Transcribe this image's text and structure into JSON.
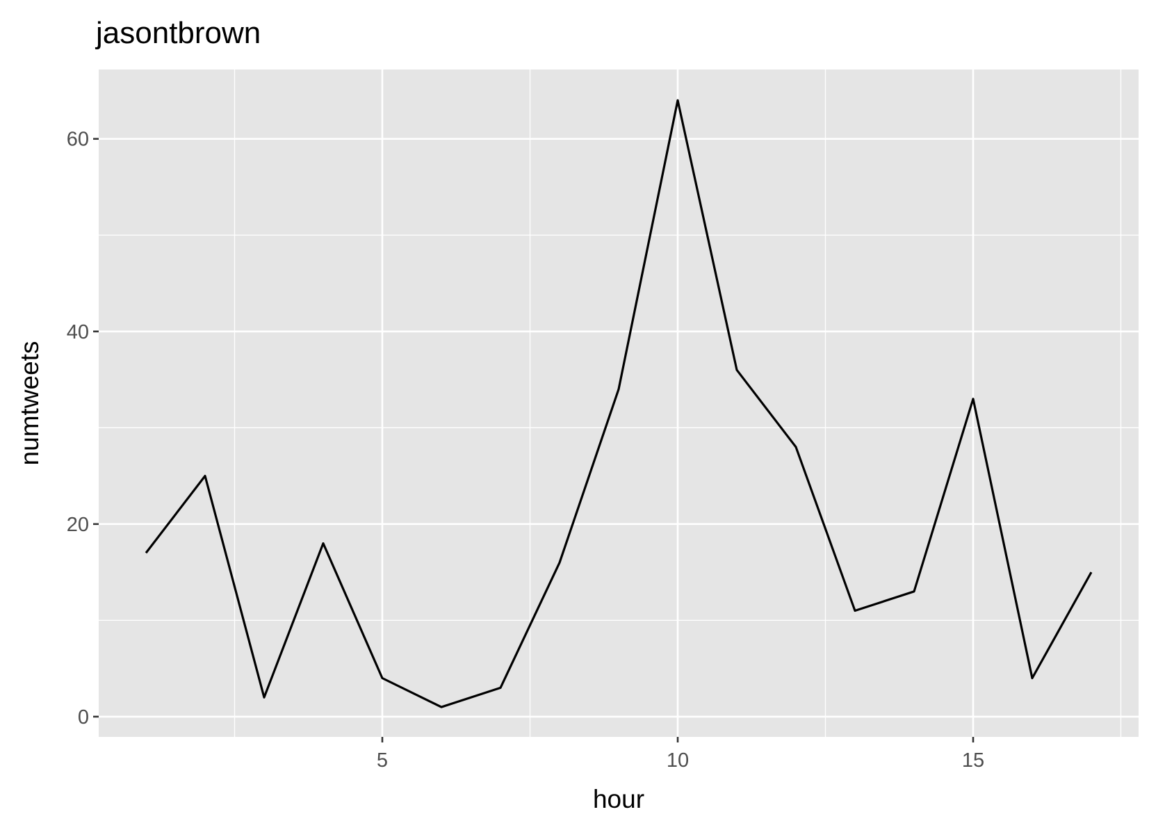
{
  "chart_data": {
    "type": "line",
    "title": "jasontbrown",
    "xlabel": "hour",
    "ylabel": "numtweets",
    "x": [
      1,
      2,
      3,
      4,
      5,
      6,
      7,
      8,
      9,
      10,
      11,
      12,
      13,
      14,
      15,
      16,
      17
    ],
    "series": [
      {
        "values": [
          17,
          25,
          2,
          18,
          4,
          1,
          3,
          16,
          34,
          64,
          36,
          28,
          11,
          13,
          33,
          4,
          15
        ]
      }
    ],
    "xlim": [
      0.2,
      17.8
    ],
    "ylim": [
      -2.1,
      67.2
    ],
    "x_ticks": [
      5,
      10,
      15
    ],
    "x_tick_labels": [
      "5",
      "10",
      "15"
    ],
    "x_minor_ticks": [
      2.5,
      7.5,
      12.5,
      17.5
    ],
    "y_ticks": [
      0,
      20,
      40,
      60
    ],
    "y_tick_labels": [
      "0",
      "20",
      "40",
      "60"
    ],
    "y_minor_ticks": [
      10,
      30,
      50
    ],
    "grid": true,
    "panel_background": "#e5e5e5",
    "line_color": "#000000",
    "legend": "none"
  }
}
